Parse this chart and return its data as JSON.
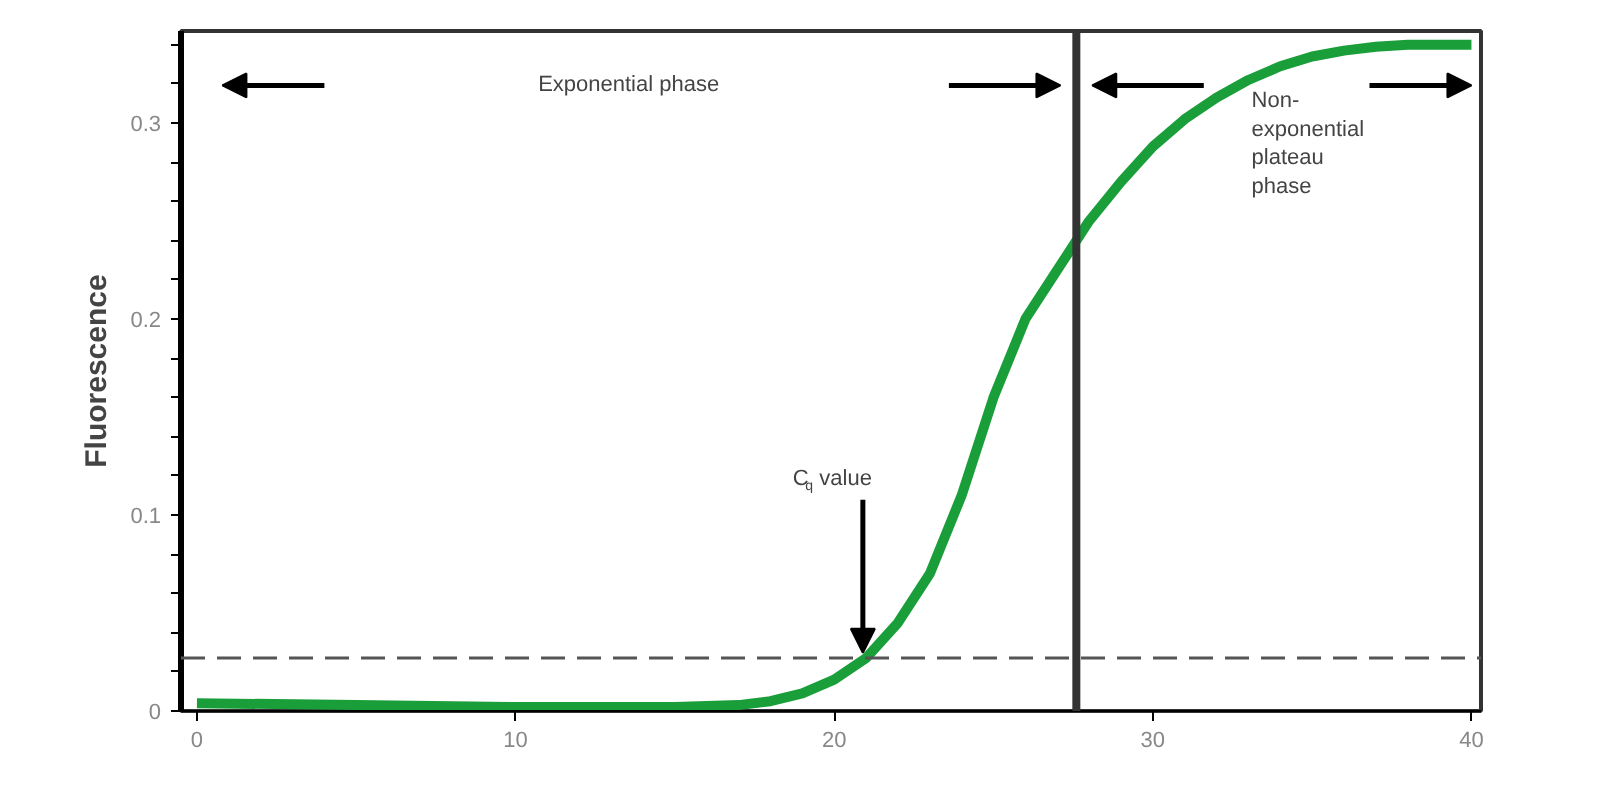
{
  "chart_data": {
    "type": "line",
    "ylabel": "Fluorescence",
    "x": [
      0,
      5,
      10,
      15,
      17,
      18,
      19,
      20,
      21,
      22,
      23,
      24,
      25,
      26,
      27,
      28,
      29,
      30,
      31,
      32,
      33,
      34,
      35,
      36,
      37,
      38,
      39,
      40
    ],
    "series": [
      {
        "color": "#1a9e3a",
        "values": [
          0.004,
          0.003,
          0.002,
          0.002,
          0.003,
          0.005,
          0.009,
          0.016,
          0.027,
          0.045,
          0.07,
          0.11,
          0.16,
          0.2,
          0.225,
          0.25,
          0.27,
          0.288,
          0.302,
          0.313,
          0.322,
          0.329,
          0.334,
          0.337,
          0.339,
          0.34,
          0.34,
          0.34
        ]
      }
    ],
    "xlim": [
      -0.5,
      40.3
    ],
    "ylim": [
      0,
      0.347
    ],
    "xticks": [
      0,
      10,
      20,
      30,
      40
    ],
    "yticks": [
      0,
      {
        "value": 0.02,
        "label": null
      },
      {
        "value": 0.04,
        "label": null
      },
      {
        "value": 0.06,
        "label": null
      },
      {
        "value": 0.08,
        "label": null
      },
      0.1,
      {
        "value": 0.12,
        "label": null
      },
      {
        "value": 0.14,
        "label": null
      },
      {
        "value": 0.16,
        "label": null
      },
      {
        "value": 0.18,
        "label": null
      },
      0.2,
      {
        "value": 0.22,
        "label": null
      },
      {
        "value": 0.24,
        "label": null
      },
      {
        "value": 0.26,
        "label": null
      },
      {
        "value": 0.28,
        "label": null
      },
      0.3,
      {
        "value": 0.32,
        "label": null
      },
      {
        "value": 0.34,
        "label": null
      }
    ],
    "ref_lines": [
      {
        "axis": "y",
        "value": 0.027,
        "color": "#555555",
        "line_style": "dashed"
      },
      {
        "axis": "x",
        "value": 27.6,
        "color": "#333333",
        "line_style": "solid"
      }
    ],
    "annotations": [
      "Exponential phase",
      "Non-\nexponential\nplateau\nphase",
      {
        "text": "C$_{q}$ value",
        "x": 20.9,
        "y": 0.028
      }
    ],
    "grid": false,
    "marker": "none",
    "line_style": "solid"
  }
}
